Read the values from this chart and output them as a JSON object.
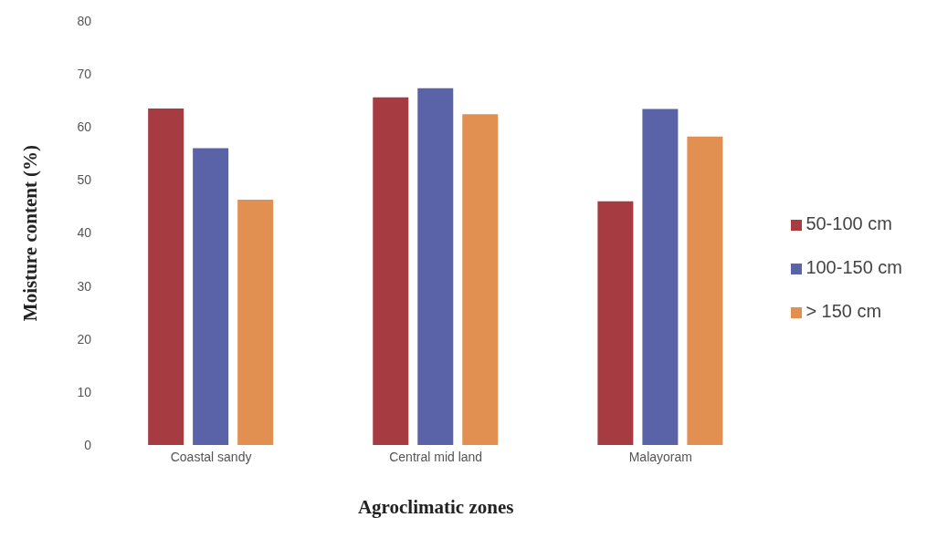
{
  "chart_data": {
    "type": "bar",
    "xlabel": "Agroclimatic zones",
    "ylabel": "Moisture content (%)",
    "categories": [
      "Coastal sandy",
      "Central mid land",
      "Malayoram"
    ],
    "series": [
      {
        "name": "50-100 cm",
        "color": "#a63c41",
        "values": [
          63.5,
          65.6,
          46
        ]
      },
      {
        "name": "100-150 cm",
        "color": "#5a62a8",
        "values": [
          56,
          67.3,
          63.4
        ]
      },
      {
        "name": "> 150 cm",
        "color": "#e28f52",
        "values": [
          46.3,
          62.4,
          58.2
        ]
      }
    ],
    "ylim": [
      0,
      80
    ],
    "yticks": [
      0,
      10,
      20,
      30,
      40,
      50,
      60,
      70,
      80
    ],
    "grid": false,
    "legend": "right"
  }
}
